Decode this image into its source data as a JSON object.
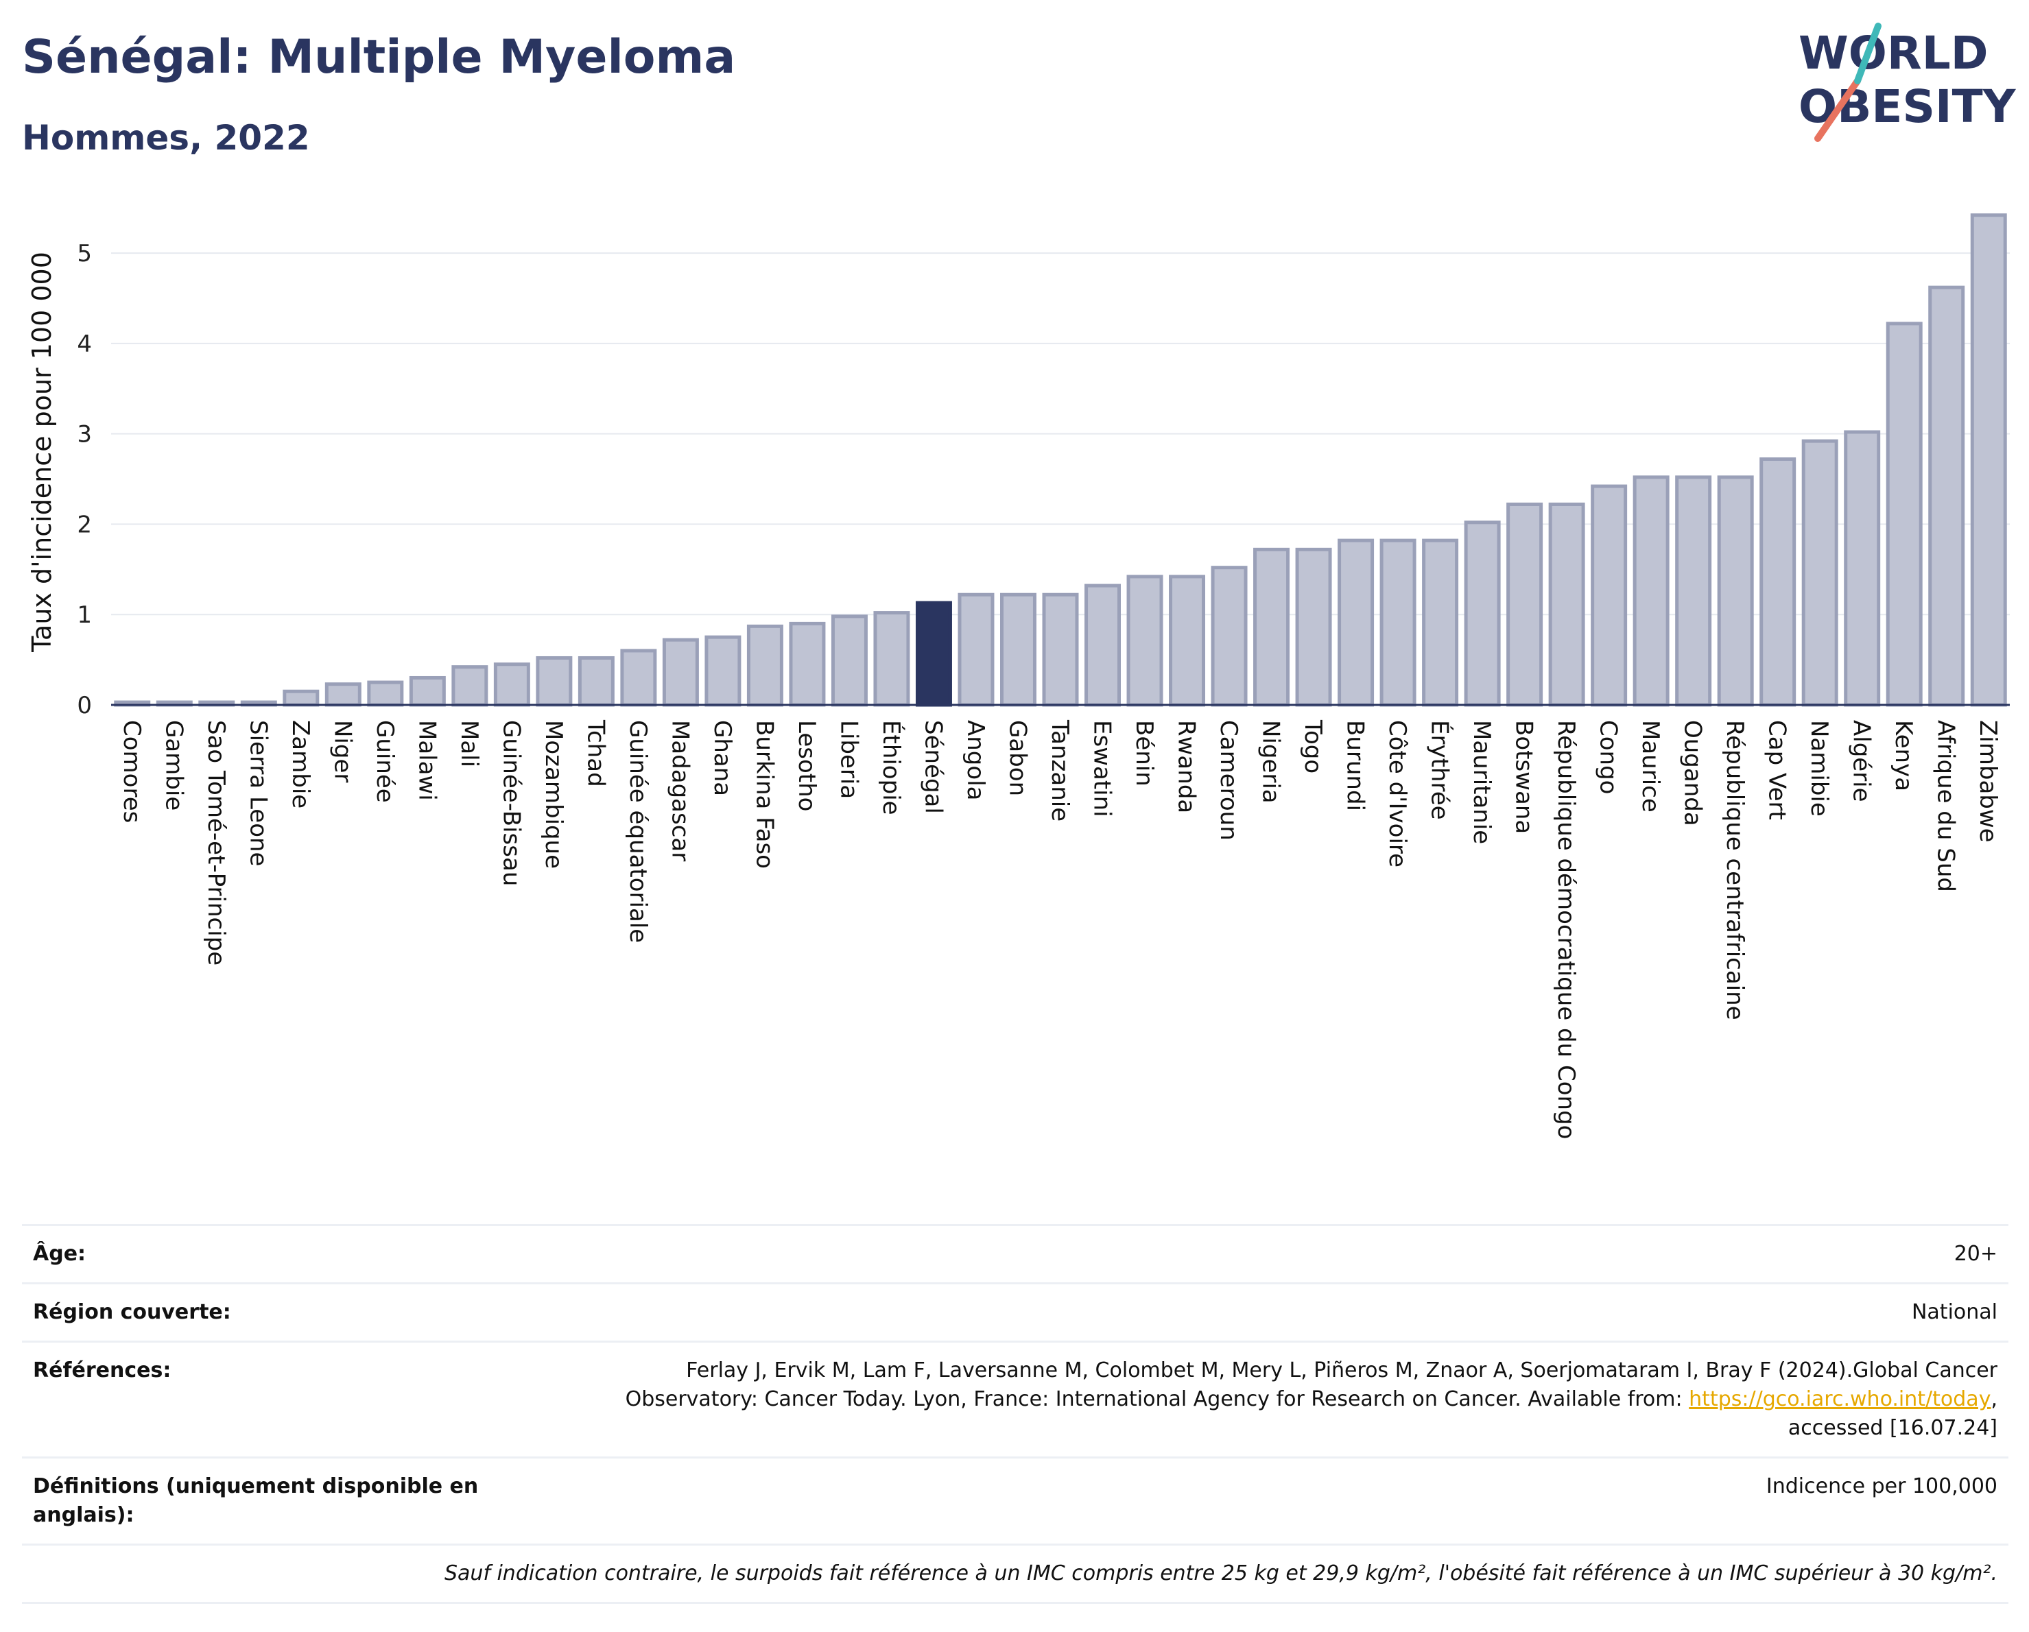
{
  "header": {
    "title": "Sénégal: Multiple Myeloma",
    "subtitle": "Hommes, 2022",
    "logo_text": [
      "WORLD",
      "OBESITY"
    ]
  },
  "colors": {
    "highlight": "#2a3560",
    "bar_fill": "#bfc3d3",
    "bar_stroke": "#9aa0b8",
    "title": "#2a3560"
  },
  "chart_data": {
    "type": "bar",
    "ylabel": "Taux d'incidence pour 100 000",
    "ylim": [
      0,
      5.6
    ],
    "yticks": [
      0,
      1,
      2,
      3,
      4,
      5
    ],
    "highlight": "Sénégal",
    "grid": true,
    "categories": [
      "Comores",
      "Gambie",
      "Sao Tomé-et-Principe",
      "Sierra Leone",
      "Zambie",
      "Niger",
      "Guinée",
      "Malawi",
      "Mali",
      "Guinée-Bissau",
      "Mozambique",
      "Tchad",
      "Guinée équatoriale",
      "Madagascar",
      "Ghana",
      "Burkina Faso",
      "Lesotho",
      "Liberia",
      "Éthiopie",
      "Sénégal",
      "Angola",
      "Gabon",
      "Tanzanie",
      "Eswatini",
      "Bénin",
      "Rwanda",
      "Cameroun",
      "Nigeria",
      "Togo",
      "Burundi",
      "Côte d'Ivoire",
      "Érythrée",
      "Mauritanie",
      "Botswana",
      "République démocratique du Congo",
      "Congo",
      "Maurice",
      "Ouganda",
      "République centrafricaine",
      "Cap Vert",
      "Namibie",
      "Algérie",
      "Kenya",
      "Afrique du Sud",
      "Zimbabwe"
    ],
    "values": [
      0.03,
      0.03,
      0.03,
      0.03,
      0.15,
      0.23,
      0.25,
      0.3,
      0.42,
      0.45,
      0.52,
      0.52,
      0.6,
      0.72,
      0.75,
      0.87,
      0.9,
      0.98,
      1.02,
      1.13,
      1.22,
      1.22,
      1.22,
      1.32,
      1.42,
      1.42,
      1.52,
      1.72,
      1.72,
      1.82,
      1.82,
      1.82,
      2.02,
      2.22,
      2.22,
      2.42,
      2.52,
      2.52,
      2.52,
      2.72,
      2.92,
      3.02,
      4.22,
      4.62,
      5.42
    ]
  },
  "info": {
    "age_label": "Âge:",
    "age_value": "20+",
    "region_label": "Région couverte:",
    "region_value": "National",
    "refs_label": "Références:",
    "refs_text": "Ferlay J, Ervik M, Lam F, Laversanne M, Colombet M, Mery L, Piñeros M, Znaor A, Soerjomataram I, Bray F (2024).Global Cancer Observatory: Cancer Today. Lyon, France: International Agency for Research on Cancer. Available from: ",
    "refs_link": "https://gco.iarc.who.int/today",
    "refs_tail": ", accessed [16.07.24]",
    "defs_label": "Définitions (uniquement disponible en anglais):",
    "defs_value": "Indicence per 100,000",
    "note": "Sauf indication contraire, le surpoids fait référence à un IMC compris entre 25 kg et 29,9 kg/m², l'obésité fait référence à un IMC supérieur à 30 kg/m²."
  }
}
